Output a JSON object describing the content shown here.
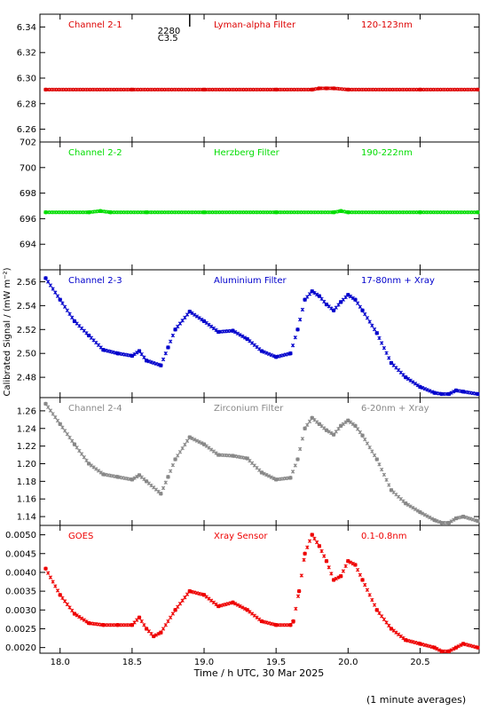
{
  "figure": {
    "ylabel": "Calibrated Signal / (mW m⁻²)",
    "xlabel": "Time / h UTC, 30 Mar 2025",
    "footnote": "(1 minute averages)",
    "marker": {
      "label_top": "2280",
      "label_bottom": "C3.5",
      "x": 18.9
    }
  },
  "chart_data": [
    {
      "type": "scatter",
      "channel": "Channel 2-1",
      "filter": "Lyman-alpha Filter",
      "band": "120-123nm",
      "color": "#dd0000",
      "ylim": [
        6.25,
        6.35
      ],
      "yticks": [
        "6.26",
        "6.28",
        "6.30",
        "6.32",
        "6.34"
      ],
      "x": [
        17.9,
        18.5,
        19.0,
        19.5,
        19.75,
        19.8,
        19.85,
        19.9,
        20.0,
        20.5,
        20.9
      ],
      "values": [
        6.291,
        6.291,
        6.291,
        6.291,
        6.291,
        6.292,
        6.292,
        6.292,
        6.291,
        6.291,
        6.291
      ]
    },
    {
      "type": "scatter",
      "channel": "Channel 2-2",
      "filter": "Herzberg Filter",
      "band": "190-222nm",
      "color": "#00dd00",
      "ylim": [
        692.0,
        702.0
      ],
      "yticks": [
        "694",
        "696",
        "698",
        "700",
        "702"
      ],
      "x": [
        17.9,
        18.2,
        18.28,
        18.35,
        18.6,
        19.0,
        19.5,
        19.9,
        19.95,
        20.0,
        20.5,
        20.9
      ],
      "values": [
        696.5,
        696.5,
        696.6,
        696.5,
        696.5,
        696.5,
        696.5,
        696.5,
        696.6,
        696.5,
        696.5,
        696.5
      ]
    },
    {
      "type": "scatter",
      "channel": "Channel 2-3",
      "filter": "Aluminium Filter",
      "band": "17-80nm + Xray",
      "color": "#0000cc",
      "ylim": [
        2.463,
        2.57
      ],
      "yticks": [
        "2.48",
        "2.50",
        "2.52",
        "2.54",
        "2.56"
      ],
      "x": [
        17.9,
        18.0,
        18.1,
        18.2,
        18.3,
        18.4,
        18.5,
        18.55,
        18.6,
        18.7,
        18.75,
        18.8,
        18.9,
        19.0,
        19.1,
        19.2,
        19.3,
        19.4,
        19.5,
        19.6,
        19.65,
        19.7,
        19.75,
        19.8,
        19.85,
        19.9,
        19.95,
        20.0,
        20.05,
        20.1,
        20.2,
        20.3,
        20.4,
        20.5,
        20.6,
        20.65,
        20.7,
        20.75,
        20.8,
        20.9
      ],
      "values": [
        2.563,
        2.545,
        2.527,
        2.515,
        2.503,
        2.5,
        2.498,
        2.502,
        2.494,
        2.49,
        2.505,
        2.52,
        2.535,
        2.527,
        2.518,
        2.519,
        2.512,
        2.502,
        2.497,
        2.5,
        2.52,
        2.545,
        2.552,
        2.548,
        2.541,
        2.536,
        2.543,
        2.549,
        2.545,
        2.536,
        2.517,
        2.492,
        2.48,
        2.472,
        2.467,
        2.466,
        2.466,
        2.469,
        2.468,
        2.466
      ]
    },
    {
      "type": "scatter",
      "channel": "Channel 2-4",
      "filter": "Zirconium Filter",
      "band": "6-20nm + Xray",
      "color": "#888888",
      "ylim": [
        1.13,
        1.275
      ],
      "yticks": [
        "1.14",
        "1.16",
        "1.18",
        "1.20",
        "1.22",
        "1.24",
        "1.26"
      ],
      "x": [
        17.9,
        18.0,
        18.1,
        18.2,
        18.3,
        18.4,
        18.5,
        18.55,
        18.6,
        18.7,
        18.75,
        18.8,
        18.9,
        19.0,
        19.1,
        19.2,
        19.3,
        19.4,
        19.5,
        19.6,
        19.65,
        19.7,
        19.75,
        19.8,
        19.85,
        19.9,
        19.95,
        20.0,
        20.05,
        20.1,
        20.2,
        20.3,
        20.4,
        20.5,
        20.6,
        20.65,
        20.7,
        20.75,
        20.8,
        20.9
      ],
      "values": [
        1.268,
        1.245,
        1.222,
        1.2,
        1.188,
        1.185,
        1.182,
        1.187,
        1.18,
        1.166,
        1.185,
        1.205,
        1.23,
        1.222,
        1.21,
        1.209,
        1.206,
        1.19,
        1.182,
        1.184,
        1.205,
        1.24,
        1.252,
        1.245,
        1.238,
        1.233,
        1.243,
        1.249,
        1.243,
        1.232,
        1.205,
        1.17,
        1.155,
        1.145,
        1.136,
        1.133,
        1.133,
        1.138,
        1.14,
        1.135
      ]
    },
    {
      "type": "scatter",
      "channel": "GOES",
      "filter": "Xray Sensor",
      "band": "0.1-0.8nm",
      "color": "#ee0000",
      "ylim": [
        0.00185,
        0.00525
      ],
      "yticks": [
        "0.0020",
        "0.0025",
        "0.0030",
        "0.0035",
        "0.0040",
        "0.0045",
        "0.0050"
      ],
      "x": [
        17.9,
        18.0,
        18.1,
        18.2,
        18.3,
        18.4,
        18.5,
        18.55,
        18.6,
        18.65,
        18.7,
        18.8,
        18.9,
        19.0,
        19.1,
        19.2,
        19.3,
        19.4,
        19.5,
        19.6,
        19.62,
        19.66,
        19.7,
        19.75,
        19.8,
        19.85,
        19.9,
        19.95,
        20.0,
        20.05,
        20.1,
        20.2,
        20.3,
        20.4,
        20.5,
        20.6,
        20.65,
        20.7,
        20.75,
        20.8,
        20.9
      ],
      "values": [
        0.0041,
        0.0034,
        0.0029,
        0.00265,
        0.0026,
        0.0026,
        0.0026,
        0.0028,
        0.0025,
        0.0023,
        0.0024,
        0.003,
        0.0035,
        0.0034,
        0.0031,
        0.0032,
        0.003,
        0.0027,
        0.0026,
        0.0026,
        0.0027,
        0.0035,
        0.0045,
        0.005,
        0.0047,
        0.0043,
        0.0038,
        0.0039,
        0.0043,
        0.0042,
        0.0038,
        0.003,
        0.0025,
        0.0022,
        0.0021,
        0.002,
        0.0019,
        0.0019,
        0.002,
        0.0021,
        0.002
      ]
    }
  ],
  "x_axis": {
    "xlim": [
      17.86,
      20.91
    ],
    "ticks": [
      18.0,
      18.5,
      19.0,
      19.5,
      20.0,
      20.5
    ],
    "tick_labels": [
      "18.0",
      "18.5",
      "19.0",
      "19.5",
      "20.0",
      "20.5"
    ]
  }
}
